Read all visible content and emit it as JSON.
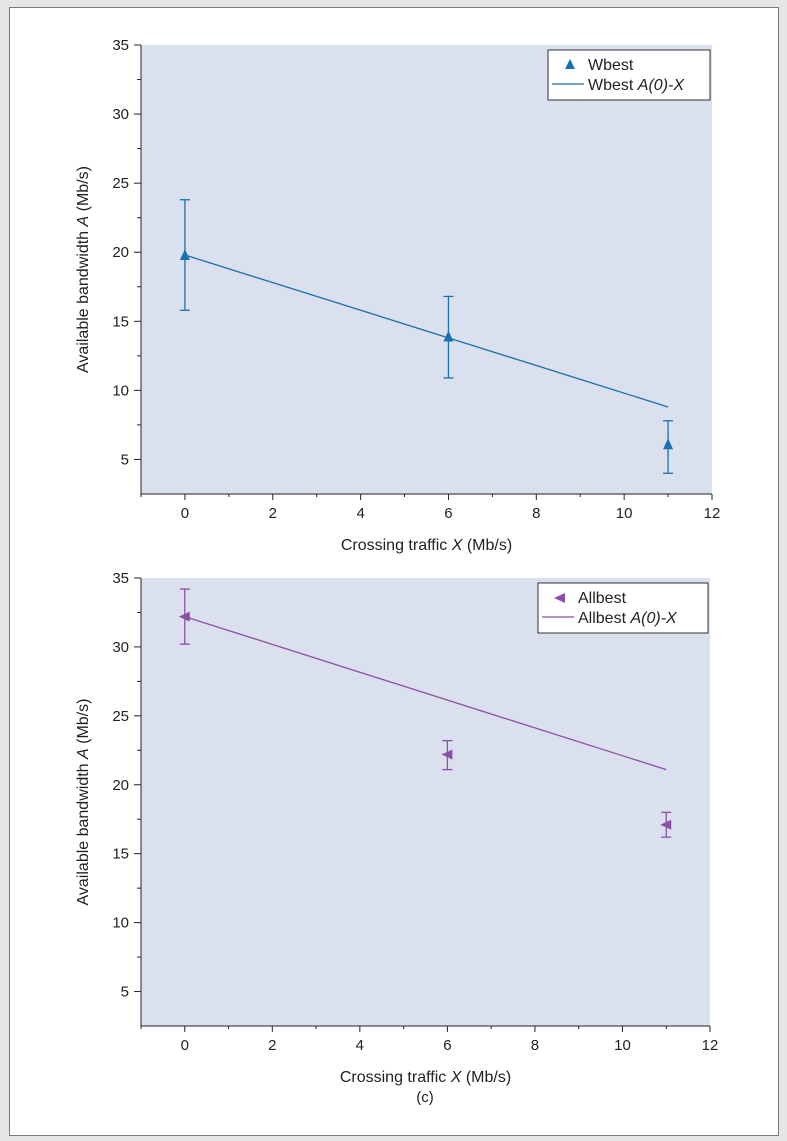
{
  "caption": "(c)",
  "chart_data": [
    {
      "type": "line",
      "title": "",
      "xlabel": "Crossing traffic X (Mb/s)",
      "ylabel": "Available bandwidth A (Mb/s)",
      "xlim": [
        -1,
        12
      ],
      "ylim": [
        2.5,
        35
      ],
      "xticks": [
        0,
        2,
        4,
        6,
        8,
        10,
        12
      ],
      "yticks": [
        5,
        10,
        15,
        20,
        25,
        30,
        35
      ],
      "legend_position": "top-right",
      "background": "#dae0ee",
      "series": [
        {
          "name": "Wbest",
          "kind": "points",
          "marker": "triangle-up",
          "color": "#1a6faf",
          "points": [
            {
              "x": 0,
              "y": 19.8,
              "err_low": 15.8,
              "err_high": 23.8
            },
            {
              "x": 6,
              "y": 13.9,
              "err_low": 10.9,
              "err_high": 16.8
            },
            {
              "x": 11,
              "y": 6.1,
              "err_low": 4.0,
              "err_high": 7.8
            }
          ]
        },
        {
          "name": "Wbest A(0)-X",
          "kind": "line",
          "color": "#1a6faf",
          "points": [
            {
              "x": 0,
              "y": 19.8
            },
            {
              "x": 11,
              "y": 8.8
            }
          ]
        }
      ]
    },
    {
      "type": "line",
      "title": "",
      "xlabel": "Crossing traffic X (Mb/s)",
      "ylabel": "Available bandwidth A (Mb/s)",
      "xlim": [
        -1,
        12
      ],
      "ylim": [
        2.5,
        35
      ],
      "xticks": [
        0,
        2,
        4,
        6,
        8,
        10,
        12
      ],
      "yticks": [
        5,
        10,
        15,
        20,
        25,
        30,
        35
      ],
      "legend_position": "top-right",
      "background": "#dae0ee",
      "series": [
        {
          "name": "Allbest",
          "kind": "points",
          "marker": "triangle-left",
          "color": "#8c4fa8",
          "points": [
            {
              "x": 0,
              "y": 32.2,
              "err_low": 30.2,
              "err_high": 34.2
            },
            {
              "x": 6,
              "y": 22.2,
              "err_low": 21.1,
              "err_high": 23.2
            },
            {
              "x": 11,
              "y": 17.1,
              "err_low": 16.2,
              "err_high": 18.0
            }
          ]
        },
        {
          "name": "Allbest A(0)-X",
          "kind": "line",
          "color": "#8c4fa8",
          "points": [
            {
              "x": 0,
              "y": 32.2
            },
            {
              "x": 11,
              "y": 21.1
            }
          ]
        }
      ]
    }
  ]
}
